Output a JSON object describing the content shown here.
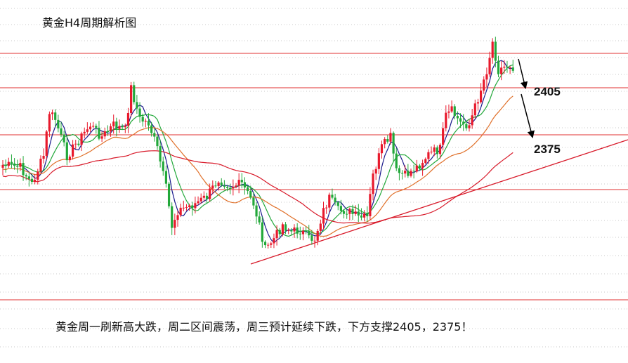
{
  "title": "黄金H4周期解析图",
  "footnote": "黄金周一刷新高大跌，周二区间震荡，周三预计延续下跌，下方支撑2405，2375！",
  "colors": {
    "bull": "#e8192c",
    "bear": "#22a83a",
    "ma_fast": "#1a1a8c",
    "ma_green": "#22a83a",
    "ma_mid": "#e0702a",
    "ma_slow": "#d81a2a",
    "level_line": "#e03030",
    "trendline": "#d81a2a",
    "grid": "#c8c8c8",
    "arrow": "#000000"
  },
  "chart_data": {
    "type": "candlestick",
    "title": "黄金H4周期解析图",
    "annotation": "黄金周一刷新高大跌，周二区间震荡，周三预计延续下跌，下方支撑2405，2375！",
    "price_levels": [
      {
        "label": "2405",
        "value": 2405
      },
      {
        "label": "2375",
        "value": 2375
      }
    ],
    "moving_averages": [
      "ma_fast",
      "ma_green",
      "ma_mid",
      "ma_slow"
    ],
    "grid": true,
    "legend": "none",
    "forecast_arrows": "down"
  }
}
